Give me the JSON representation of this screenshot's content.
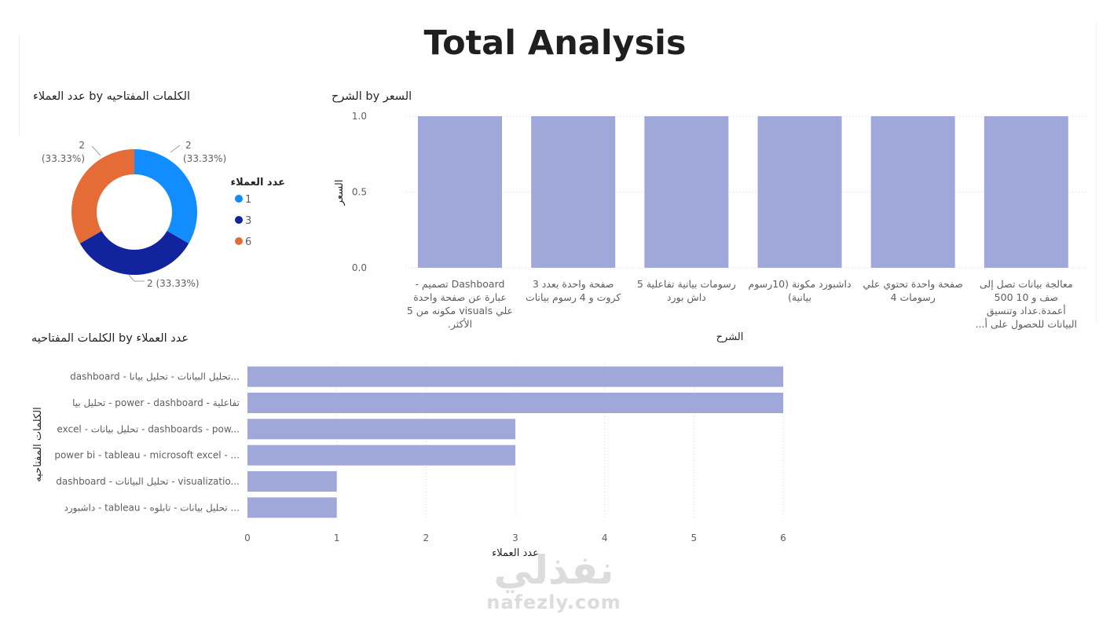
{
  "page": {
    "title": "Total Analysis"
  },
  "watermark": {
    "arabic": "نفذلي",
    "latin": "nafezly.com"
  },
  "chart_data": [
    {
      "type": "pie",
      "variant": "donut",
      "title": "عدد العملاء by الكلمات المفتاحيه",
      "legend": {
        "title": "عدد العملاء",
        "position": "right"
      },
      "slices": [
        {
          "name": "1",
          "value": 2,
          "label": "2\n(33.33%)",
          "color": "#118DFF"
        },
        {
          "name": "3",
          "value": 2,
          "label": "2 (33.33%)",
          "color": "#12239E"
        },
        {
          "name": "6",
          "value": 2,
          "label": "2\n(33.33%)",
          "color": "#E66C37"
        }
      ]
    },
    {
      "type": "bar",
      "orientation": "vertical",
      "title": "الشرح by السعر",
      "xlabel": "الشرح",
      "ylabel": "السعر",
      "ylim": [
        0,
        1
      ],
      "yticks": [
        "0.0",
        "0.5",
        "1.0"
      ],
      "grid": true,
      "color": "#A0A8DA",
      "categories": [
        [
          "Dashboard تصميم -",
          "عبارة عن صفحة واحدة",
          "علي visuals مكونه من 5",
          "الأكثر."
        ],
        [
          "صفحة واحدة بعدد 3",
          "كروت و 4 رسوم بيانات"
        ],
        [
          "رسومات بيانية تفاعلية 5",
          "داش بورد"
        ],
        [
          "داشبورد مكونة (10رسوم",
          "بيانية)"
        ],
        [
          "صفحة واحدة تحتوي علي",
          "رسومات 4"
        ],
        [
          "معالجة بيانات تصل إلى",
          "صف و 10 500",
          "أعمدة.عداد وتنسيق",
          "البيانات للحصول على أ..."
        ]
      ],
      "values": [
        1,
        1,
        1,
        1,
        1,
        1
      ]
    },
    {
      "type": "bar",
      "orientation": "horizontal",
      "title": "الكلمات المفتاحيه by عدد العملاء",
      "xlabel": "عدد العملاء",
      "ylabel": "الكلمات المفتاحيه",
      "xlim": [
        0,
        6
      ],
      "xticks": [
        "0",
        "1",
        "2",
        "3",
        "4",
        "5",
        "6"
      ],
      "grid": true,
      "color": "#A0A8DA",
      "categories": [
        "dashboard - تحليل البيانات - تحليل بيانا...",
        "تحليل بيا - power - dashboard - تفاعلية",
        "excel - تحليل بيانات - dashboards - pow...",
        "power bi - tableau - microsoft excel - ...",
        "dashboard - تحليل البيانات - visualizatio...",
        "داشبورد - tableau - تحليل بيانات - تابلوه ..."
      ],
      "values": [
        6,
        6,
        3,
        3,
        1,
        1
      ]
    }
  ]
}
